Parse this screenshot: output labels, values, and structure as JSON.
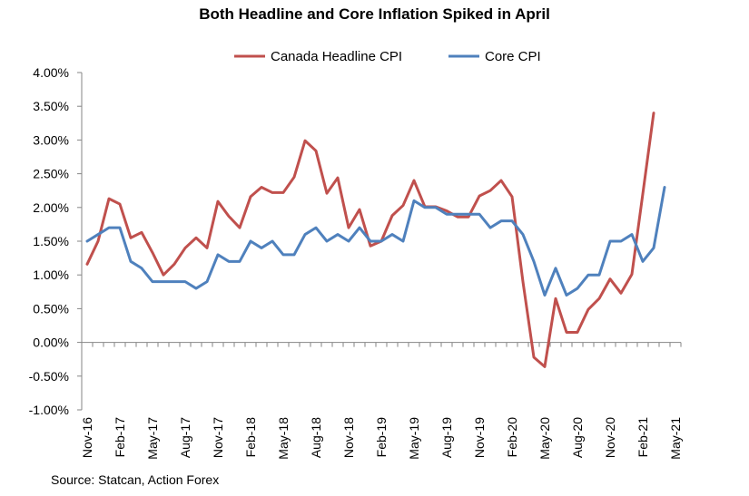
{
  "chart_data": {
    "type": "line",
    "title": "Both Headline and Core Inflation Spiked in April",
    "xlabel": "",
    "ylabel": "",
    "ylim": [
      -0.01,
      0.04
    ],
    "yticks": [
      -0.01,
      -0.005,
      0,
      0.005,
      0.01,
      0.015,
      0.02,
      0.025,
      0.03,
      0.035,
      0.04
    ],
    "ytick_labels": [
      "-1.00%",
      "-0.50%",
      "0.00%",
      "0.50%",
      "1.00%",
      "1.50%",
      "2.00%",
      "2.50%",
      "3.00%",
      "3.50%",
      "4.00%"
    ],
    "x_period_count": 55,
    "xtick_labels": [
      "Nov-16",
      "Feb-17",
      "May-17",
      "Aug-17",
      "Nov-17",
      "Feb-18",
      "May-18",
      "Aug-18",
      "Nov-18",
      "Feb-19",
      "May-19",
      "Aug-19",
      "Nov-19",
      "Feb-20",
      "May-20",
      "Aug-20",
      "Nov-20",
      "Feb-21",
      "May-21"
    ],
    "legend_position": "top",
    "grid": false,
    "series": [
      {
        "name": "Canada Headline CPI",
        "color": "#c0504d",
        "values": [
          0.0116,
          0.015,
          0.0213,
          0.0205,
          0.0155,
          0.0163,
          0.0133,
          0.01,
          0.0116,
          0.014,
          0.0155,
          0.014,
          0.0209,
          0.0187,
          0.017,
          0.0216,
          0.023,
          0.0222,
          0.0222,
          0.0245,
          0.0299,
          0.0284,
          0.0221,
          0.0244,
          0.017,
          0.0197,
          0.0143,
          0.015,
          0.0188,
          0.0203,
          0.024,
          0.0201,
          0.0201,
          0.0195,
          0.0186,
          0.0186,
          0.0217,
          0.0225,
          0.024,
          0.0216,
          0.009,
          -0.0022,
          -0.0036,
          0.0065,
          0.0015,
          0.0015,
          0.0049,
          0.0065,
          0.0094,
          0.0073,
          0.0101,
          0.022,
          0.034
        ]
      },
      {
        "name": "Core CPI",
        "color": "#4f81bd",
        "values": [
          0.015,
          0.016,
          0.017,
          0.017,
          0.012,
          0.011,
          0.009,
          0.009,
          0.009,
          0.009,
          0.008,
          0.009,
          0.013,
          0.012,
          0.012,
          0.015,
          0.014,
          0.015,
          0.013,
          0.013,
          0.016,
          0.017,
          0.015,
          0.016,
          0.015,
          0.017,
          0.015,
          0.015,
          0.016,
          0.015,
          0.021,
          0.02,
          0.02,
          0.019,
          0.019,
          0.019,
          0.019,
          0.017,
          0.018,
          0.018,
          0.016,
          0.012,
          0.007,
          0.011,
          0.007,
          0.008,
          0.01,
          0.01,
          0.015,
          0.015,
          0.016,
          0.012,
          0.014,
          0.023
        ]
      }
    ]
  },
  "source_note": "Source: Statcan, Action Forex"
}
